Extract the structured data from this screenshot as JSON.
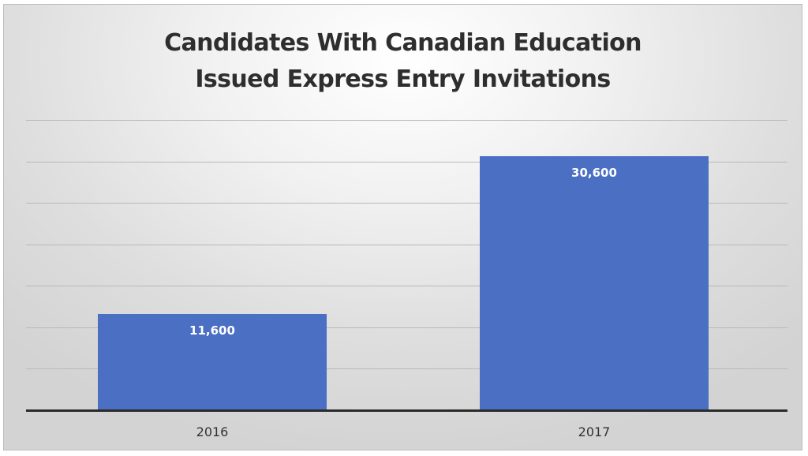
{
  "chart_data": {
    "type": "bar",
    "title": "Candidates With Canadian Education Issued Express Entry Invitations",
    "title_lines": [
      "Candidates With Canadian Education",
      "Issued Express Entry Invitations"
    ],
    "categories": [
      "2016",
      "2017"
    ],
    "values": [
      11600,
      30600
    ],
    "data_labels": [
      "11,600",
      "30,600"
    ],
    "xlabel": "",
    "ylabel": "",
    "ylim": [
      0,
      35000
    ],
    "y_gridlines": [
      5000,
      10000,
      15000,
      20000,
      25000,
      30000,
      35000
    ],
    "y_tick_labels_visible": false,
    "grid": true,
    "legend": null,
    "bar_color": "#4a6fc3"
  }
}
